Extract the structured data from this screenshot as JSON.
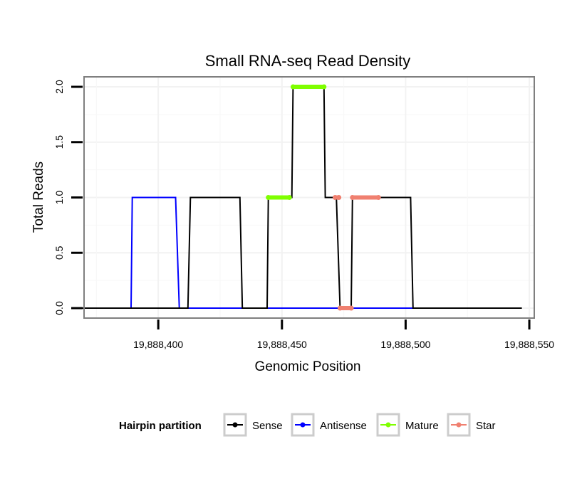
{
  "chart_data": {
    "type": "line",
    "title": "Small RNA-seq Read Density",
    "xlabel": "Genomic Position",
    "ylabel": "Total Reads",
    "xlim": [
      19888370,
      19888552
    ],
    "ylim": [
      -0.09,
      2.09
    ],
    "x_ticks": [
      19888400,
      19888450,
      19888500,
      19888550
    ],
    "x_tick_labels": [
      "19,888,400",
      "19,888,450",
      "19,888,500",
      "19,888,550"
    ],
    "y_ticks": [
      0,
      0.5,
      1,
      1.5,
      2
    ],
    "y_tick_labels": [
      "0.0",
      "0.5",
      "1.0",
      "1.5",
      "2.0"
    ],
    "grid": true,
    "legend": {
      "title": "Hairpin partition",
      "position": "bottom",
      "entries": [
        {
          "label": "Sense",
          "color": "#000000"
        },
        {
          "label": "Antisense",
          "color": "#0000ff"
        },
        {
          "label": "Mature",
          "color": "#7fff00"
        },
        {
          "label": "Star",
          "color": "#f08070"
        }
      ]
    },
    "series": [
      {
        "name": "Antisense",
        "color": "#0000ff",
        "kind": "line",
        "x": [
          19888380,
          19888389,
          19888389.5,
          19888407,
          19888408.5,
          19888503
        ],
        "y": [
          0,
          0,
          1,
          1,
          0,
          0
        ]
      },
      {
        "name": "Sense",
        "color": "#000000",
        "kind": "line",
        "x": [
          19888368,
          19888412,
          19888413,
          19888433,
          19888434,
          19888444,
          19888444.5,
          19888454,
          19888454.5,
          19888467,
          19888467.5,
          19888472,
          19888473.5,
          19888478,
          19888478.5,
          19888502,
          19888503,
          19888547
        ],
        "y": [
          0,
          0,
          1,
          1,
          0,
          0,
          1,
          1,
          2,
          2,
          1,
          1,
          0,
          0,
          1,
          1,
          0,
          0
        ]
      },
      {
        "name": "Mature",
        "color": "#7fff00",
        "kind": "segments",
        "segments": [
          {
            "x": [
              19888444.5,
              19888453
            ],
            "y": 1
          },
          {
            "x": [
              19888454.5,
              19888467
            ],
            "y": 2
          }
        ]
      },
      {
        "name": "Star",
        "color": "#f08070",
        "kind": "segments",
        "segments": [
          {
            "x": [
              19888471.5,
              19888473
            ],
            "y": 1
          },
          {
            "x": [
              19888473.5,
              19888478
            ],
            "y": 0
          },
          {
            "x": [
              19888478.5,
              19888489
            ],
            "y": 1
          }
        ]
      }
    ]
  }
}
